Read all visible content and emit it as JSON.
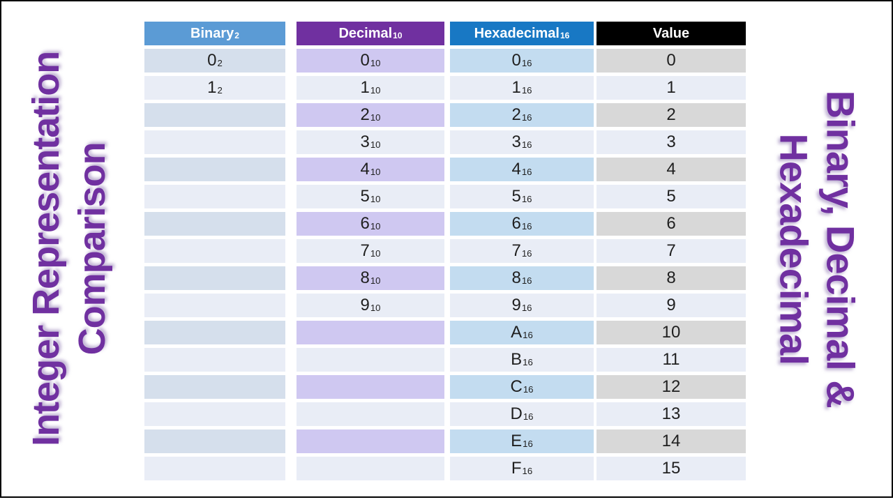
{
  "slide": {
    "left_title": {
      "line1": "Integer Representation",
      "line2": "Comparison"
    },
    "right_title": {
      "line1": "Binary, Decimal &",
      "line2": "Hexadecimal"
    }
  },
  "colors": {
    "title-purple": "#7030A0",
    "header-binary": "#5B9BD5",
    "header-decimal": "#7030A0",
    "header-hex": "#1878C4",
    "header-value": "#000000",
    "band-binary": "#D5DFEC",
    "band-decimal": "#CFC8F1",
    "band-hex": "#C3DCF0",
    "band-value": "#D8D8D8",
    "band-light": "#E9EDF6"
  },
  "table": {
    "column_names": [
      "binary",
      "decimal",
      "hexadecimal",
      "value"
    ],
    "headers": [
      {
        "label": "Binary",
        "sub": "2"
      },
      {
        "label": "Decimal",
        "sub": "10"
      },
      {
        "label": "Hexadecimal",
        "sub": "16"
      },
      {
        "label": "Value",
        "sub": ""
      }
    ],
    "rows": [
      [
        {
          "t": "0",
          "s": "2"
        },
        {
          "t": "0",
          "s": "10"
        },
        {
          "t": "0",
          "s": "16"
        },
        {
          "t": "0",
          "s": ""
        }
      ],
      [
        {
          "t": "1",
          "s": "2"
        },
        {
          "t": "1",
          "s": "10"
        },
        {
          "t": "1",
          "s": "16"
        },
        {
          "t": "1",
          "s": ""
        }
      ],
      [
        {
          "t": "",
          "s": ""
        },
        {
          "t": "2",
          "s": "10"
        },
        {
          "t": "2",
          "s": "16"
        },
        {
          "t": "2",
          "s": ""
        }
      ],
      [
        {
          "t": "",
          "s": ""
        },
        {
          "t": "3",
          "s": "10"
        },
        {
          "t": "3",
          "s": "16"
        },
        {
          "t": "3",
          "s": ""
        }
      ],
      [
        {
          "t": "",
          "s": ""
        },
        {
          "t": "4",
          "s": "10"
        },
        {
          "t": "4",
          "s": "16"
        },
        {
          "t": "4",
          "s": ""
        }
      ],
      [
        {
          "t": "",
          "s": ""
        },
        {
          "t": "5",
          "s": "10"
        },
        {
          "t": "5",
          "s": "16"
        },
        {
          "t": "5",
          "s": ""
        }
      ],
      [
        {
          "t": "",
          "s": ""
        },
        {
          "t": "6",
          "s": "10"
        },
        {
          "t": "6",
          "s": "16"
        },
        {
          "t": "6",
          "s": ""
        }
      ],
      [
        {
          "t": "",
          "s": ""
        },
        {
          "t": "7",
          "s": "10"
        },
        {
          "t": "7",
          "s": "16"
        },
        {
          "t": "7",
          "s": ""
        }
      ],
      [
        {
          "t": "",
          "s": ""
        },
        {
          "t": "8",
          "s": "10"
        },
        {
          "t": "8",
          "s": "16"
        },
        {
          "t": "8",
          "s": ""
        }
      ],
      [
        {
          "t": "",
          "s": ""
        },
        {
          "t": "9",
          "s": "10"
        },
        {
          "t": "9",
          "s": "16"
        },
        {
          "t": "9",
          "s": ""
        }
      ],
      [
        {
          "t": "",
          "s": ""
        },
        {
          "t": "",
          "s": ""
        },
        {
          "t": "A",
          "s": "16"
        },
        {
          "t": "10",
          "s": ""
        }
      ],
      [
        {
          "t": "",
          "s": ""
        },
        {
          "t": "",
          "s": ""
        },
        {
          "t": "B",
          "s": "16"
        },
        {
          "t": "11",
          "s": ""
        }
      ],
      [
        {
          "t": "",
          "s": ""
        },
        {
          "t": "",
          "s": ""
        },
        {
          "t": "C",
          "s": "16"
        },
        {
          "t": "12",
          "s": ""
        }
      ],
      [
        {
          "t": "",
          "s": ""
        },
        {
          "t": "",
          "s": ""
        },
        {
          "t": "D",
          "s": "16"
        },
        {
          "t": "13",
          "s": ""
        }
      ],
      [
        {
          "t": "",
          "s": ""
        },
        {
          "t": "",
          "s": ""
        },
        {
          "t": "E",
          "s": "16"
        },
        {
          "t": "14",
          "s": ""
        }
      ],
      [
        {
          "t": "",
          "s": ""
        },
        {
          "t": "",
          "s": ""
        },
        {
          "t": "F",
          "s": "16"
        },
        {
          "t": "15",
          "s": ""
        }
      ]
    ]
  }
}
